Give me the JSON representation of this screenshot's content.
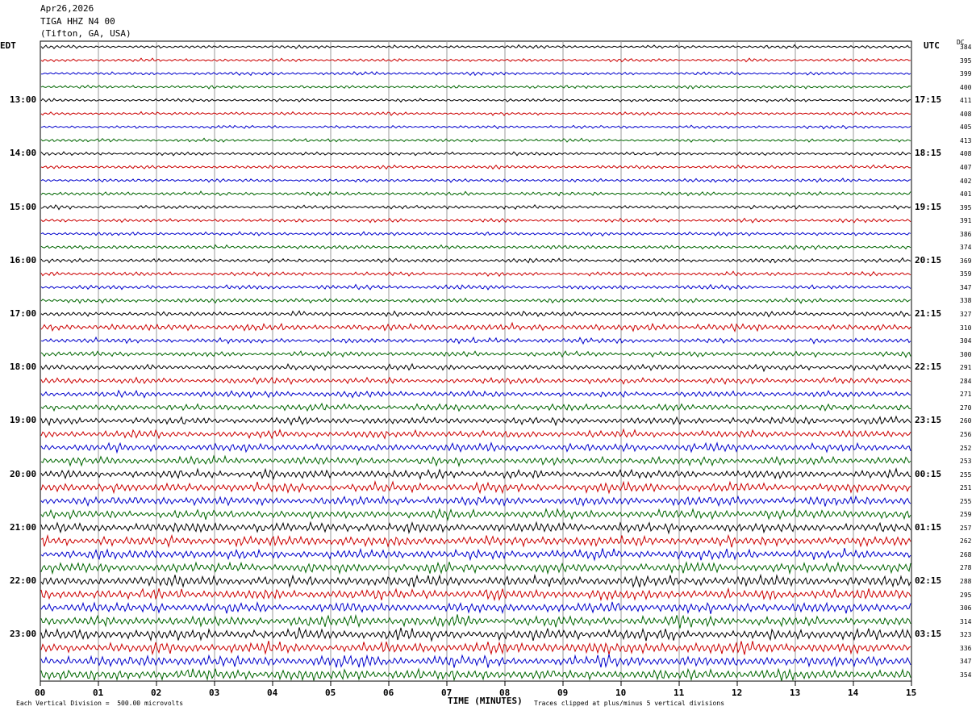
{
  "header": {
    "date": "Apr26,2026",
    "station": "TIGA HHZ N4 00",
    "location": "(Tifton, GA, USA)"
  },
  "left_tz": "EDT",
  "right_tz": "UTC",
  "dc_label": "DC",
  "footer": {
    "scale": "Each Vertical Division =  500.00 microvolts",
    "xlabel": "TIME (MINUTES)",
    "clip_note": "Traces clipped at plus/minus 5 vertical divisions"
  },
  "colors": {
    "black": "#000000",
    "red": "#cc0000",
    "blue": "#0000cc",
    "green": "#006600",
    "grid": "#999999"
  },
  "chart_data": {
    "type": "line",
    "title": "",
    "xlabel": "TIME (MINUTES)",
    "xlim": [
      0,
      15
    ],
    "x_ticks": [
      "00",
      "01",
      "02",
      "03",
      "04",
      "05",
      "06",
      "07",
      "08",
      "09",
      "10",
      "11",
      "12",
      "13",
      "14",
      "15"
    ],
    "left_hour_labels": [
      "13:00",
      "14:00",
      "15:00",
      "16:00",
      "17:00",
      "18:00",
      "19:00",
      "20:00",
      "21:00",
      "22:00",
      "23:00"
    ],
    "right_hour_labels": [
      "17:15",
      "18:15",
      "19:15",
      "20:15",
      "21:15",
      "22:15",
      "23:15",
      "00:15",
      "01:15",
      "02:15",
      "03:15"
    ],
    "trace_dc_offsets": [
      384,
      395,
      399,
      400,
      411,
      408,
      405,
      413,
      408,
      407,
      402,
      401,
      395,
      391,
      386,
      374,
      369,
      359,
      347,
      338,
      327,
      310,
      304,
      300,
      291,
      284,
      271,
      270,
      260,
      256,
      252,
      253,
      255,
      251,
      255,
      259,
      257,
      262,
      268,
      278,
      288,
      295,
      306,
      314,
      323,
      336,
      347,
      354
    ],
    "trace_activity": [
      0.25,
      0.25,
      0.25,
      0.25,
      0.25,
      0.25,
      0.25,
      0.25,
      0.28,
      0.28,
      0.28,
      0.3,
      0.3,
      0.3,
      0.3,
      0.32,
      0.32,
      0.32,
      0.35,
      0.35,
      0.4,
      0.55,
      0.42,
      0.42,
      0.45,
      0.5,
      0.5,
      0.55,
      0.6,
      0.6,
      0.65,
      0.65,
      0.7,
      0.75,
      0.75,
      0.75,
      0.8,
      0.8,
      0.8,
      0.8,
      0.85,
      0.85,
      0.85,
      0.85,
      0.9,
      0.9,
      0.9,
      0.9
    ],
    "grid": true
  }
}
